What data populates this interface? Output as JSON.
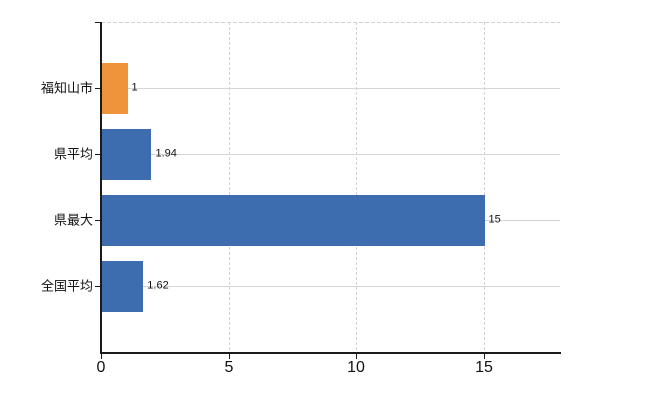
{
  "chart_data": {
    "type": "bar",
    "orientation": "horizontal",
    "categories": [
      "福知山市",
      "県平均",
      "県最大",
      "全国平均"
    ],
    "values": [
      1,
      1.94,
      15,
      1.62
    ],
    "value_labels": [
      "1",
      "1.94",
      "15",
      "1.62"
    ],
    "bar_colors": [
      "#F0943C",
      "#3D6DAE",
      "#3D6DAE",
      "#3D6DAE"
    ],
    "highlight_color": "#F0943C",
    "default_color": "#3D6DAE",
    "xlim": [
      0,
      18
    ],
    "xticks": [
      0,
      5,
      10,
      15
    ],
    "xtick_labels": [
      "0",
      "5",
      "10",
      "15"
    ],
    "grid": true,
    "legend": "none"
  },
  "colors": {
    "background": "#FFFFFF",
    "axis": "#1A1A1A",
    "gridline_horizontal": "#D2D8D2",
    "gridline_vertical": "#D6D0D6",
    "text": "#111111"
  }
}
